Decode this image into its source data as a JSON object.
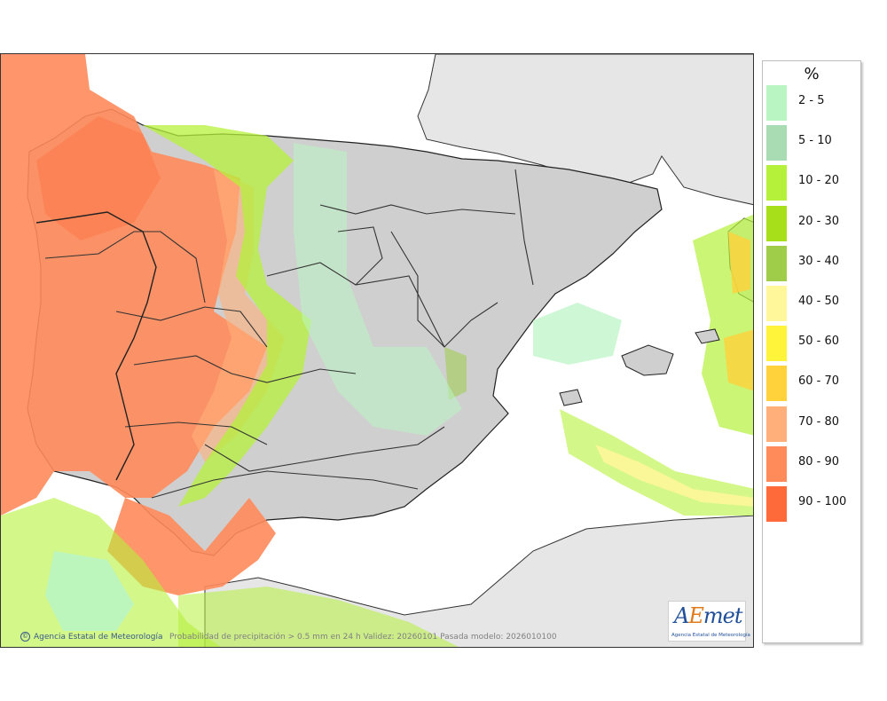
{
  "legend": {
    "unit": "%",
    "items": [
      {
        "label": "2 - 5",
        "color": "#b9f5c3"
      },
      {
        "label": "5 - 10",
        "color": "#a9dcb3"
      },
      {
        "label": "10 - 20",
        "color": "#b5f13a"
      },
      {
        "label": "20 - 30",
        "color": "#a7e01a"
      },
      {
        "label": "30 - 40",
        "color": "#9fcd4a"
      },
      {
        "label": "40 - 50",
        "color": "#fff79a"
      },
      {
        "label": "50 - 60",
        "color": "#fff43a"
      },
      {
        "label": "60 - 70",
        "color": "#ffd13a"
      },
      {
        "label": "70 - 80",
        "color": "#ffb07a"
      },
      {
        "label": "80 - 90",
        "color": "#ff8a5a"
      },
      {
        "label": "90 - 100",
        "color": "#ff6a3a"
      }
    ]
  },
  "footer": {
    "credit": "Agencia Estatal de Meteorología",
    "description": "Probabilidad de precipitación > 0.5 mm en 24 h Validez: 20260101 Pasada modelo: 2026010100"
  },
  "logo": {
    "mark_a": "A",
    "mark_e": "E",
    "mark_rest": "met",
    "subtitle": "Agencia Estatal de Meteorología"
  },
  "map": {
    "sea_color": "#ffffff",
    "foreign_land_color": "#e6e6e6",
    "relief_color": "#cfcfcf"
  }
}
